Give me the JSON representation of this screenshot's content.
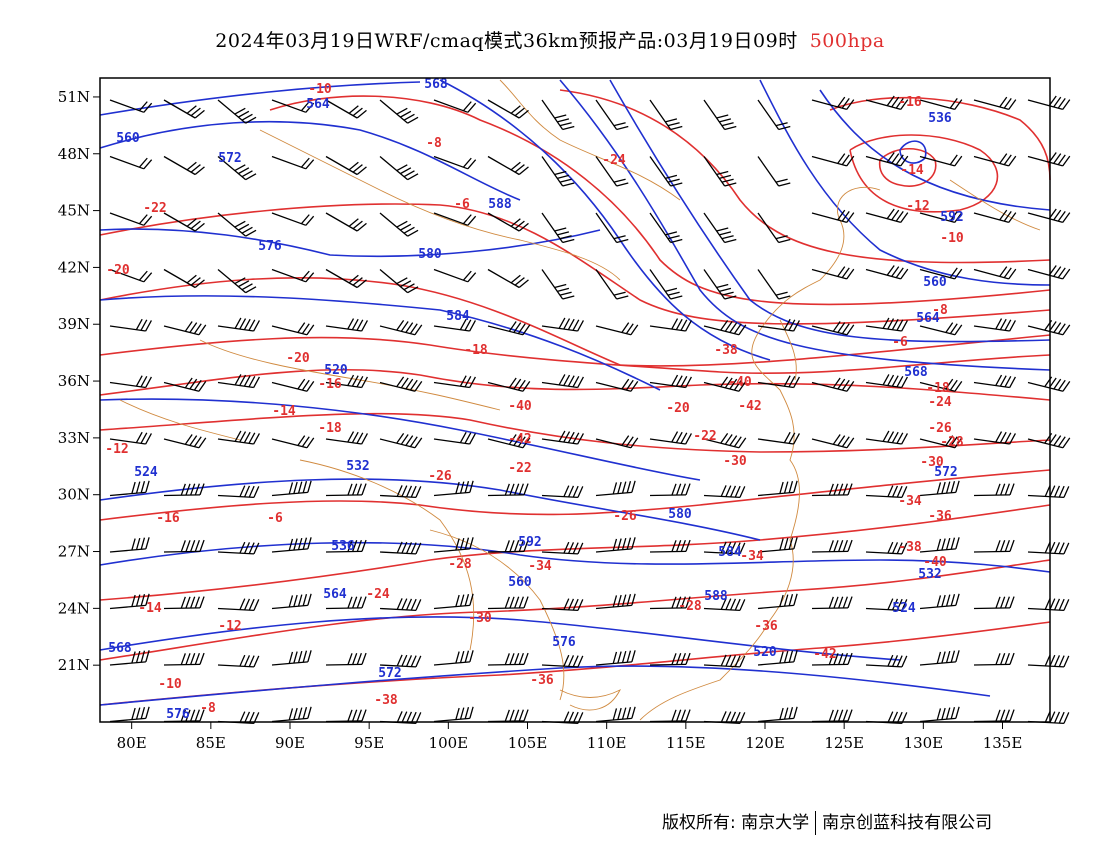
{
  "title": {
    "main": "2024年03月19日WRF/cmaq模式36km预报产品:03月19日09时",
    "level": "500hpa"
  },
  "axes": {
    "lon_labels": [
      "80E",
      "85E",
      "90E",
      "95E",
      "100E",
      "105E",
      "110E",
      "115E",
      "120E",
      "125E",
      "130E",
      "135E"
    ],
    "lat_labels": [
      "51N",
      "48N",
      "45N",
      "42N",
      "39N",
      "36N",
      "33N",
      "30N",
      "27N",
      "24N",
      "21N"
    ]
  },
  "colors": {
    "temperature_contour": "#e03030",
    "height_contour": "#2030d0",
    "coastline_border": "#d08a40",
    "wind_barb": "#000000"
  },
  "contour_labels": {
    "temperature": [
      "-22",
      "-20",
      "-16",
      "-14",
      "-12",
      "-10",
      "-8",
      "-6",
      "-18",
      "-24",
      "-26",
      "-28",
      "-30",
      "-34",
      "-36",
      "-38",
      "-40",
      "-42"
    ],
    "height": [
      "560",
      "564",
      "568",
      "572",
      "576",
      "580",
      "584",
      "588",
      "520",
      "524",
      "532",
      "536",
      "592"
    ]
  },
  "footer": {
    "left": "版权所有: 南京大学",
    "right": "南京创蓝科技有限公司"
  }
}
